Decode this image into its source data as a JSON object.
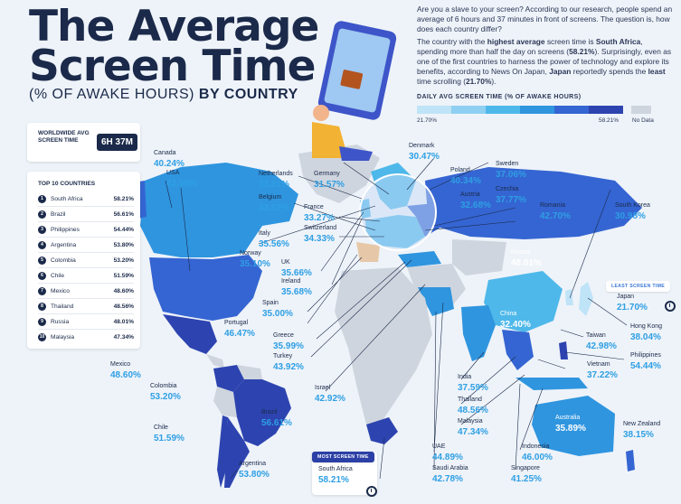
{
  "title": {
    "line1": "The Average",
    "line2": "Screen Time",
    "sub_a": "(% OF AWAKE HOURS)",
    "sub_b": "BY COUNTRY"
  },
  "intro": {
    "p1": "Are you a slave to your screen? According to our research, people spend an average of 6 hours and 37 minutes in front of screens. The question is, how does each country differ?",
    "p2a": "The country with the ",
    "p2b": "highest average",
    "p2c": " screen time is ",
    "p2d": "South Africa",
    "p2e": ", spending more than half the day on screens (",
    "p2f": "58.21%",
    "p2g": "). Surprisingly, even as one of the first countries to harness the power of technology and explore its benefits, according to News On Japan, ",
    "p2h": "Japan",
    "p2i": " reportedly spends the ",
    "p2j": "least",
    "p2k": " time scrolling (",
    "p2l": "21.70%",
    "p2m": ")."
  },
  "legend": {
    "title": "DAILY AVG SCREEN TIME (% OF AWAKE HOURS)",
    "min": "21.70%",
    "max": "58.21%",
    "nodata": "No Data",
    "colors": [
      "#bfe3f7",
      "#8fd0f2",
      "#4fb8ea",
      "#2f95df",
      "#3565d2",
      "#2d44b0"
    ],
    "nodata_color": "#cfd5de"
  },
  "worldwide": {
    "label": "WORLDWIDE AVG SCREEN TIME",
    "value": "6H 37M"
  },
  "top10": {
    "title": "TOP 10 COUNTRIES",
    "rows": [
      {
        "rank": "1",
        "name": "South Africa",
        "value": "58.21%"
      },
      {
        "rank": "2",
        "name": "Brazil",
        "value": "56.61%"
      },
      {
        "rank": "3",
        "name": "Philippines",
        "value": "54.44%"
      },
      {
        "rank": "4",
        "name": "Argentina",
        "value": "53.80%"
      },
      {
        "rank": "5",
        "name": "Colombia",
        "value": "53.20%"
      },
      {
        "rank": "6",
        "name": "Chile",
        "value": "51.59%"
      },
      {
        "rank": "7",
        "name": "Mexico",
        "value": "48.60%"
      },
      {
        "rank": "8",
        "name": "Thailand",
        "value": "48.56%"
      },
      {
        "rank": "9",
        "name": "Russia",
        "value": "48.01%"
      },
      {
        "rank": "10",
        "name": "Malaysia",
        "value": "47.34%"
      }
    ]
  },
  "tags": {
    "least": "LEAST SCREEN TIME",
    "most": "MOST SCREEN TIME"
  },
  "countries": {
    "canada": {
      "name": "Canada",
      "value": "40.24%"
    },
    "usa": {
      "name": "USA",
      "value": "42.58%"
    },
    "mexico": {
      "name": "Mexico",
      "value": "48.60%"
    },
    "colombia": {
      "name": "Colombia",
      "value": "53.20%"
    },
    "brazil": {
      "name": "Brazil",
      "value": "56.61%"
    },
    "chile": {
      "name": "Chile",
      "value": "51.59%"
    },
    "argentina": {
      "name": "Argentina",
      "value": "53.80%"
    },
    "netherlands": {
      "name": "Netherlands",
      "value": "33.81%"
    },
    "germany": {
      "name": "Germany",
      "value": "31.57%"
    },
    "belgium": {
      "name": "Belgium",
      "value": "33.52%"
    },
    "france": {
      "name": "France",
      "value": "33.27%"
    },
    "switzerland": {
      "name": "Switzerland",
      "value": "34.33%"
    },
    "italy": {
      "name": "Italy",
      "value": "35.56%"
    },
    "norway": {
      "name": "Norway",
      "value": "35.10%"
    },
    "uk": {
      "name": "UK",
      "value": "35.66%"
    },
    "ireland": {
      "name": "Ireland",
      "value": "35.68%"
    },
    "spain": {
      "name": "Spain",
      "value": "35.00%"
    },
    "portugal": {
      "name": "Portugal",
      "value": "46.47%"
    },
    "greece": {
      "name": "Greece",
      "value": "35.99%"
    },
    "turkey": {
      "name": "Turkey",
      "value": "43.92%"
    },
    "israel": {
      "name": "Israel",
      "value": "42.92%"
    },
    "denmark": {
      "name": "Denmark",
      "value": "30.47%"
    },
    "sweden": {
      "name": "Sweden",
      "value": "37.06%"
    },
    "poland": {
      "name": "Poland",
      "value": "40.34%"
    },
    "czechia": {
      "name": "Czechia",
      "value": "37.77%"
    },
    "austria": {
      "name": "Austria",
      "value": "32.68%"
    },
    "romania": {
      "name": "Romania",
      "value": "42.70%"
    },
    "russia": {
      "name": "Russia",
      "value": "48.01%"
    },
    "south_korea": {
      "name": "South Korea",
      "value": "30.98%"
    },
    "japan": {
      "name": "Japan",
      "value": "21.70%"
    },
    "china": {
      "name": "China",
      "value": "32.40%"
    },
    "hong_kong": {
      "name": "Hong Kong",
      "value": "38.04%"
    },
    "taiwan": {
      "name": "Taiwan",
      "value": "42.98%"
    },
    "philippines": {
      "name": "Philippines",
      "value": "54.44%"
    },
    "vietnam": {
      "name": "Vietnam",
      "value": "37.22%"
    },
    "india": {
      "name": "India",
      "value": "37.59%"
    },
    "thailand": {
      "name": "Thailand",
      "value": "48.56%"
    },
    "malaysia": {
      "name": "Malaysia",
      "value": "47.34%"
    },
    "australia": {
      "name": "Australia",
      "value": "35.89%"
    },
    "new_zealand": {
      "name": "New Zealand",
      "value": "38.15%"
    },
    "indonesia": {
      "name": "Indonesia",
      "value": "46.00%"
    },
    "singapore": {
      "name": "Singapore",
      "value": "41.25%"
    },
    "uae": {
      "name": "UAE",
      "value": "44.89%"
    },
    "saudi_arabia": {
      "name": "Saudi Arabia",
      "value": "42.78%"
    },
    "south_africa": {
      "name": "South Africa",
      "value": "58.21%"
    }
  }
}
